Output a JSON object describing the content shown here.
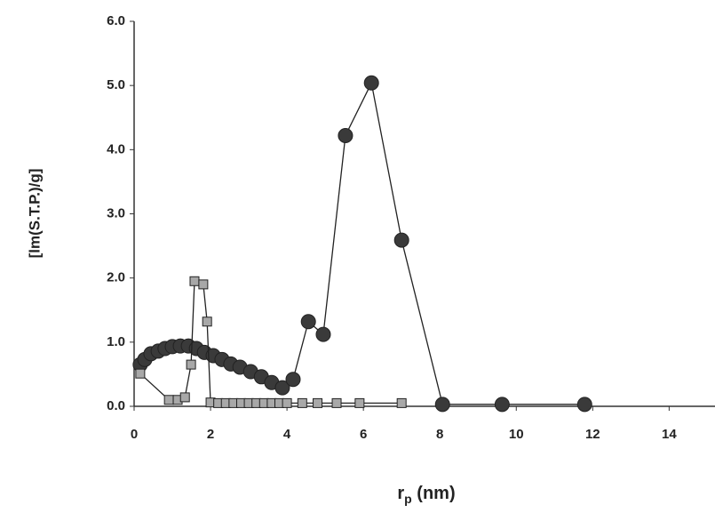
{
  "chart_data": {
    "type": "line",
    "x_label": {
      "main": "r",
      "sub": "p",
      "rest": " (nm)"
    },
    "y_label": "[lm(S.T.P.)/g]",
    "xlim": [
      0,
      15.2
    ],
    "xticks": [
      0,
      2,
      4,
      6,
      8,
      10,
      12,
      14
    ],
    "ylim": [
      0,
      6
    ],
    "yticks": [
      {
        "value": 0,
        "label": "0.0"
      },
      {
        "value": 1,
        "label": "1.0"
      },
      {
        "value": 2,
        "label": "2.0"
      },
      {
        "value": 3,
        "label": "3.0"
      },
      {
        "value": 4,
        "label": "4.0"
      },
      {
        "value": 5,
        "label": "5.0"
      },
      {
        "value": 6,
        "label": "6.0"
      }
    ],
    "series": [
      {
        "marker": "circle",
        "color": "#3a3a3a",
        "x": [
          0.16,
          0.28,
          0.44,
          0.63,
          0.81,
          1.0,
          1.21,
          1.42,
          1.63,
          1.84,
          2.07,
          2.3,
          2.53,
          2.77,
          3.05,
          3.33,
          3.6,
          3.88,
          4.16,
          4.56,
          4.95,
          5.53,
          6.21,
          7.0,
          8.07,
          9.63,
          11.79
        ],
        "values": [
          0.65,
          0.73,
          0.82,
          0.86,
          0.9,
          0.93,
          0.94,
          0.94,
          0.9,
          0.84,
          0.79,
          0.73,
          0.66,
          0.61,
          0.54,
          0.46,
          0.37,
          0.29,
          0.42,
          1.32,
          1.12,
          4.22,
          5.04,
          2.59,
          0.03,
          0.03,
          0.03
        ]
      },
      {
        "marker": "square",
        "color": "#a8a8a8",
        "x": [
          0.16,
          0.91,
          1.14,
          1.33,
          1.49,
          1.58,
          1.81,
          1.91,
          2.0,
          2.2,
          2.4,
          2.6,
          2.8,
          3.0,
          3.2,
          3.4,
          3.6,
          3.8,
          4.0,
          4.4,
          4.8,
          5.3,
          5.9,
          7.0
        ],
        "values": [
          0.51,
          0.1,
          0.1,
          0.14,
          0.65,
          1.95,
          1.9,
          1.32,
          0.06,
          0.05,
          0.05,
          0.05,
          0.05,
          0.05,
          0.05,
          0.05,
          0.05,
          0.05,
          0.05,
          0.05,
          0.05,
          0.05,
          0.05,
          0.05
        ]
      }
    ]
  }
}
